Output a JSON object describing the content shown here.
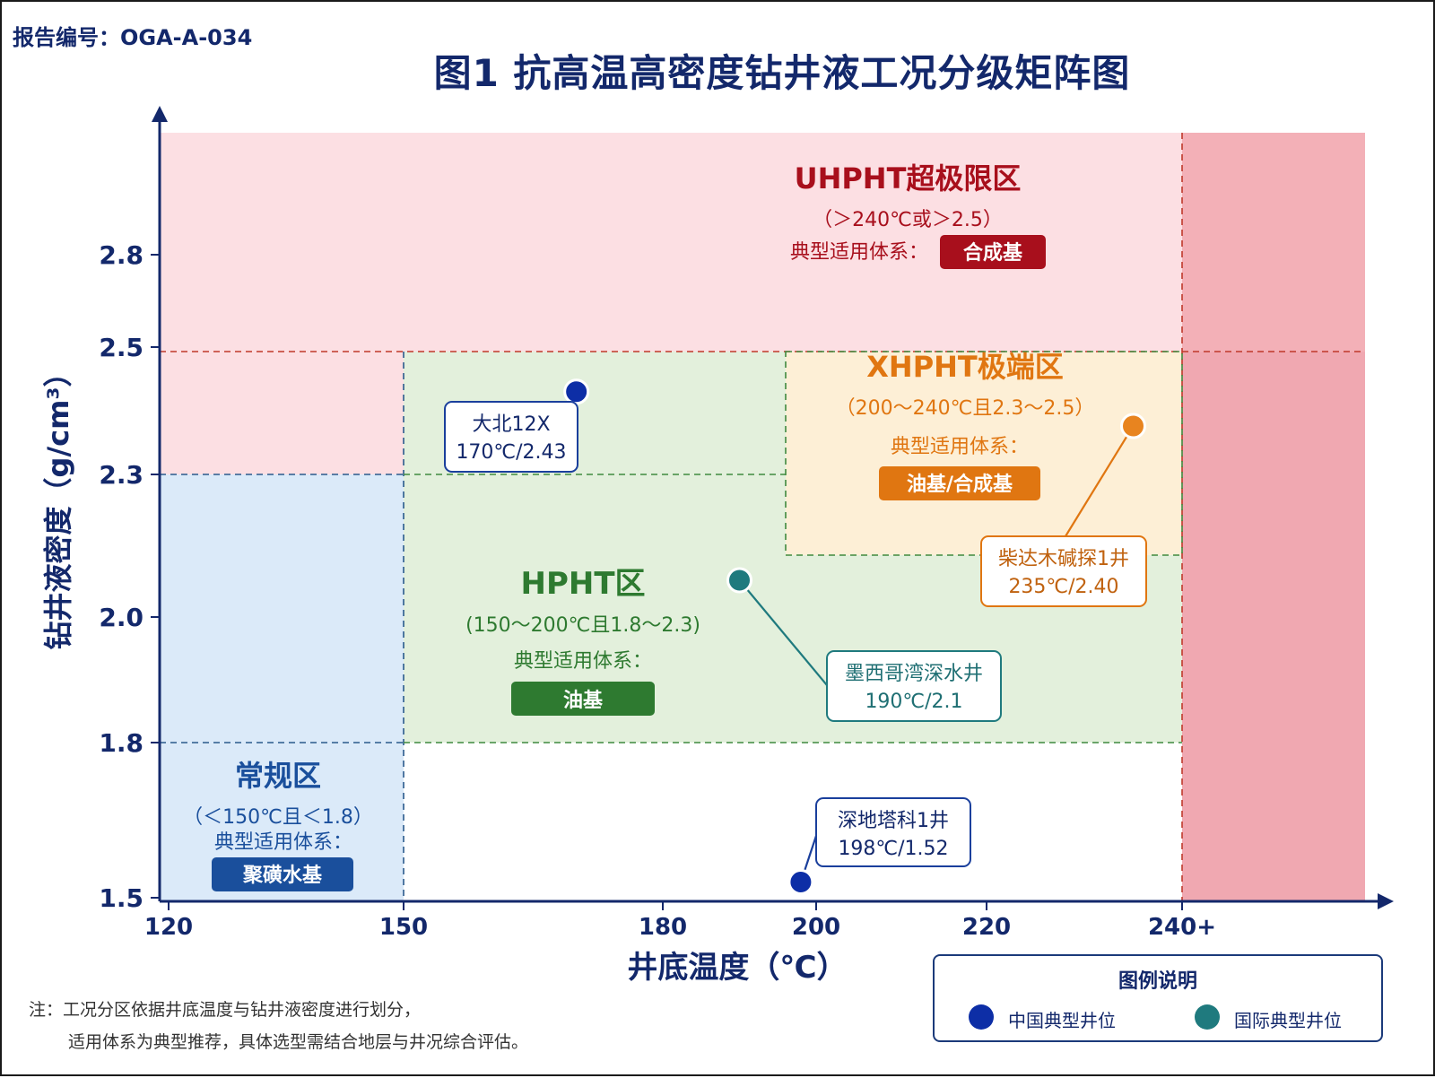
{
  "report_number": "报告编号：OGA-A-034",
  "title": "图1  抗高温高密度钻井液工况分级矩阵图",
  "note": {
    "line1": "注：工况分区依据井底温度与钻井液密度进行划分，",
    "line2": "适用体系为典型推荐，具体选型需结合地层与井况综合评估。"
  },
  "legend": {
    "title": "图例说明",
    "items": [
      {
        "label": "中国典型井位",
        "color": "#0d2ea6"
      },
      {
        "label": "国际典型井位",
        "color": "#1f7a7e"
      }
    ]
  },
  "colors": {
    "axis": "#13286b",
    "uhpht_fill": "#fcdfe3",
    "uhpht_dark": "#f3b0b7",
    "uhpht_darker": "#f0a8b1",
    "hpht_fill": "#e3f0dc",
    "xhpht_fill": "#fdefd6",
    "normal_fill": "#dbeaf9",
    "uhpht_text": "#a80f1c",
    "hpht_text": "#2e7a30",
    "xhpht_text": "#e07611",
    "normal_text": "#1a4f9c",
    "china_point": "#0d2ea6",
    "intl_point": "#1f7a7e"
  },
  "chart_data": {
    "type": "scatter",
    "xlabel": "井底温度（℃）",
    "ylabel": "钻井液密度（g/cm³）",
    "x_ticks": [
      {
        "value": 120,
        "label": "120"
      },
      {
        "value": 150,
        "label": "150"
      },
      {
        "value": 180,
        "label": "180"
      },
      {
        "value": 200,
        "label": "200"
      },
      {
        "value": 220,
        "label": "220"
      },
      {
        "value": 240,
        "label": "240+"
      }
    ],
    "y_ticks": [
      {
        "value": 1.5,
        "label": "1.5"
      },
      {
        "value": 1.8,
        "label": "1.8"
      },
      {
        "value": 2.0,
        "label": "2.0"
      },
      {
        "value": 2.3,
        "label": "2.3"
      },
      {
        "value": 2.5,
        "label": "2.5"
      },
      {
        "value": 2.8,
        "label": "2.8"
      }
    ],
    "zones": [
      {
        "key": "uhpht",
        "name": "UHPHT超极限区",
        "range": "（＞240℃或＞2.5）",
        "system_label": "典型适用体系：",
        "system": "合成基"
      },
      {
        "key": "xhpht",
        "name": "XHPHT极端区",
        "range": "（200～240℃且2.3～2.5）",
        "system_label": "典型适用体系：",
        "system": "油基/合成基"
      },
      {
        "key": "hpht",
        "name": "HPHT区",
        "range": "(150～200℃且1.8～2.3)",
        "system_label": "典型适用体系：",
        "system": "油基"
      },
      {
        "key": "normal",
        "name": "常规区",
        "range": "（＜150℃且＜1.8）",
        "system_label": "典型适用体系：",
        "system": "聚磺水基"
      }
    ],
    "points": [
      {
        "name": "大北12X",
        "value_label": "170℃/2.43",
        "x": 170,
        "y": 2.43,
        "group": "china"
      },
      {
        "name": "柴达木碱探1井",
        "value_label": "235℃/2.40",
        "x": 235,
        "y": 2.4,
        "group": "china_xhpht"
      },
      {
        "name": "墨西哥湾深水井",
        "value_label": "190℃/2.1",
        "x": 190,
        "y": 2.1,
        "group": "intl"
      },
      {
        "name": "深地塔科1井",
        "value_label": "198℃/1.52",
        "x": 198,
        "y": 1.52,
        "group": "china"
      }
    ]
  }
}
